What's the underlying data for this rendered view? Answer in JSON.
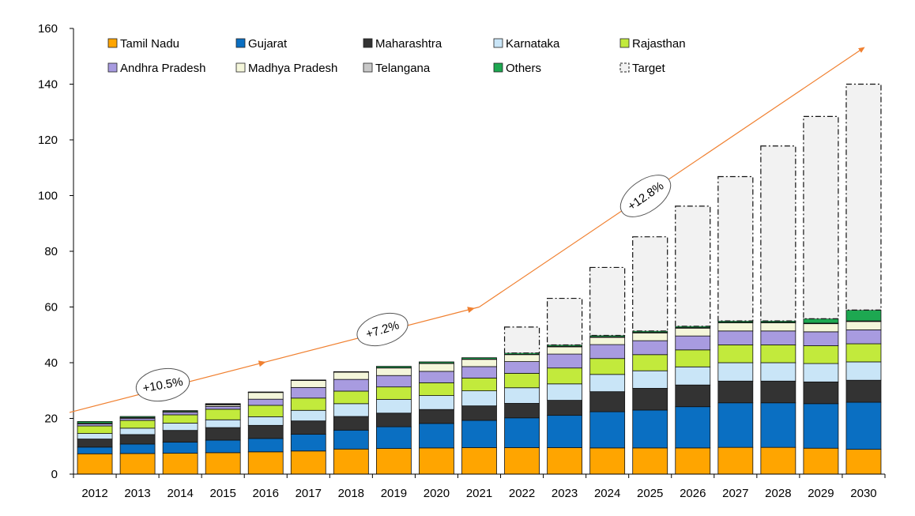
{
  "chart_data": {
    "type": "bar",
    "stacked": true,
    "title": "",
    "xlabel": "",
    "ylabel": "",
    "ylim": [
      0,
      160
    ],
    "yticks": [
      "0",
      "20",
      "40",
      "60",
      "80",
      "100",
      "120",
      "140",
      "160"
    ],
    "grid": false,
    "legend_position": "top",
    "categories": [
      "2012",
      "2013",
      "2014",
      "2015",
      "2016",
      "2017",
      "2018",
      "2019",
      "2020",
      "2021",
      "2022",
      "2023",
      "2024",
      "2025",
      "2026",
      "2027",
      "2028",
      "2029",
      "2030"
    ],
    "series": [
      {
        "name": "Tamil Nadu",
        "color": "#FFA500",
        "values": [
          7.3,
          7.4,
          7.5,
          7.7,
          8.0,
          8.3,
          9.0,
          9.2,
          9.4,
          9.5,
          9.5,
          9.5,
          9.4,
          9.4,
          9.4,
          9.6,
          9.6,
          9.3,
          8.9
        ]
      },
      {
        "name": "Gujarat",
        "color": "#0A6FC2",
        "values": [
          2.4,
          3.4,
          4.0,
          4.5,
          4.8,
          6.0,
          6.8,
          7.8,
          8.8,
          9.8,
          10.7,
          11.6,
          13.0,
          13.6,
          14.8,
          16.0,
          16.0,
          16.0,
          16.9
        ]
      },
      {
        "name": "Maharashtra",
        "color": "#333333",
        "values": [
          2.9,
          3.4,
          4.2,
          4.5,
          4.7,
          4.8,
          4.9,
          4.9,
          5.0,
          5.2,
          5.2,
          5.4,
          7.2,
          7.8,
          7.8,
          7.8,
          7.8,
          7.8,
          7.9
        ]
      },
      {
        "name": "Karnataka",
        "color": "#C9E5F7",
        "values": [
          2.0,
          2.3,
          2.6,
          2.8,
          3.1,
          3.8,
          4.6,
          4.9,
          5.0,
          5.4,
          5.6,
          5.9,
          6.2,
          6.3,
          6.5,
          6.6,
          6.6,
          6.6,
          6.6
        ]
      },
      {
        "name": "Rajasthan",
        "color": "#C2EA3C",
        "values": [
          2.7,
          2.8,
          3.0,
          3.8,
          4.1,
          4.4,
          4.5,
          4.5,
          4.6,
          4.6,
          5.2,
          5.7,
          5.7,
          5.8,
          6.1,
          6.4,
          6.4,
          6.4,
          6.5
        ]
      },
      {
        "name": "Andhra Pradesh",
        "color": "#A89BE0",
        "values": [
          0.7,
          0.7,
          0.9,
          1.0,
          2.2,
          3.8,
          4.2,
          4.1,
          4.1,
          4.1,
          4.2,
          5.0,
          5.0,
          5.0,
          5.0,
          5.0,
          5.0,
          5.0,
          5.0
        ]
      },
      {
        "name": "Madhya Pradesh",
        "color": "#F4F6DA",
        "values": [
          0.3,
          0.3,
          0.3,
          0.5,
          2.4,
          2.5,
          2.6,
          2.7,
          2.8,
          2.6,
          2.5,
          2.6,
          2.6,
          2.8,
          2.8,
          2.9,
          2.9,
          2.9,
          3.0
        ]
      },
      {
        "name": "Telangana",
        "color": "#C8C8C8",
        "values": [
          0,
          0,
          0,
          0.3,
          0.1,
          0.1,
          0.1,
          0.1,
          0.1,
          0.1,
          0.1,
          0.2,
          0.2,
          0.2,
          0.2,
          0.2,
          0.2,
          0.2,
          0.2
        ]
      },
      {
        "name": "Others",
        "color": "#1DA851",
        "values": [
          0.6,
          0.4,
          0.3,
          0.2,
          0.1,
          0.1,
          0.1,
          0.5,
          0.5,
          0.5,
          0.5,
          0.5,
          0.5,
          0.5,
          0.5,
          0.5,
          0.5,
          1.6,
          3.9
        ]
      },
      {
        "name": "Target",
        "color": "#F2F2F2",
        "pattern": "dashed-outline",
        "values": [
          0,
          0,
          0,
          0,
          0,
          0,
          0,
          0,
          0,
          0,
          9.3,
          16.7,
          24.4,
          33.8,
          43.1,
          51.8,
          62.8,
          72.6,
          81.1
        ]
      }
    ],
    "legend": [
      [
        "Tamil Nadu",
        "Gujarat",
        "Maharashtra",
        "Karnataka",
        "Rajasthan"
      ],
      [
        "Andhra Pradesh",
        "Madhya Pradesh",
        "Telangana",
        "Others",
        "Target"
      ]
    ],
    "annotations": [
      {
        "label": "+10.5%",
        "from": {
          "x": "2012",
          "y": 23
        },
        "to": {
          "x": "2021",
          "y": 60
        }
      },
      {
        "label": "+7.2%"
      },
      {
        "label": "+12.8%",
        "from": {
          "x": "2021",
          "y": 60
        },
        "to": {
          "x": "2030",
          "y": 153
        }
      }
    ]
  }
}
